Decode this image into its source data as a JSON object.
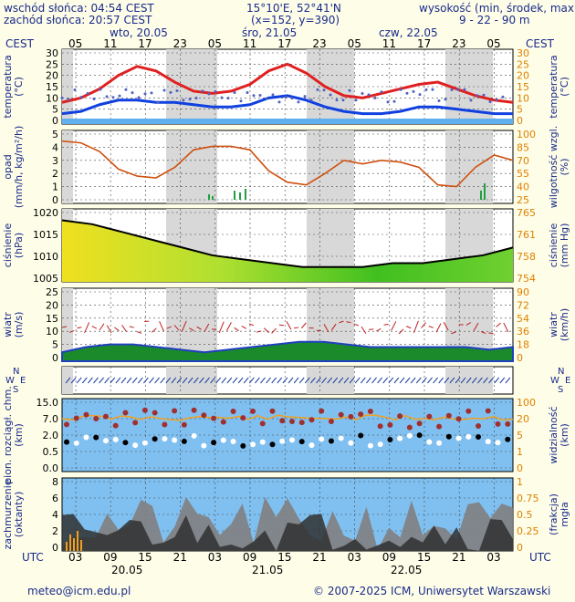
{
  "header": {
    "sunrise": "wschód słońca: 04:54 CEST",
    "sunset": "zachód słońca: 20:57 CEST",
    "coords": "15°10'E, 52°41'N",
    "grid": "(x=152, y=390)",
    "altitude_label": "wysokość (min, środek, max)",
    "altitude_values": "9 - 22 - 90 m"
  },
  "time_axis": {
    "tz": "CEST",
    "top_hours": [
      "05",
      "11",
      "17",
      "23",
      "05",
      "11",
      "17",
      "23",
      "05",
      "11",
      "17",
      "23",
      "05"
    ],
    "top_days": [
      "wto, 20.05",
      "śro, 21.05",
      "czw, 22.05"
    ],
    "utc_label": "UTC",
    "bottom_hours": [
      "03",
      "09",
      "15",
      "21",
      "03",
      "09",
      "15",
      "21",
      "03",
      "09",
      "15",
      "21",
      "03"
    ],
    "bottom_days": [
      "20.05",
      "21.05",
      "22.05"
    ]
  },
  "panels": {
    "temperature": {
      "left_label": [
        "temperatura",
        "(°C)"
      ],
      "right_label": [
        "temperatura",
        "(°C)"
      ],
      "left_ticks": [
        "30",
        "25",
        "20",
        "15",
        "10",
        "5",
        "0"
      ],
      "right_ticks": [
        "30",
        "25",
        "20",
        "15",
        "10",
        "5",
        "0"
      ]
    },
    "precip": {
      "left_label": [
        "opad",
        "(mm/h, kg/m²/h)"
      ],
      "right_label": [
        "wilgotność wzgl.",
        "(%)"
      ],
      "left_ticks": [
        "5",
        "4",
        "3",
        "2",
        "1",
        "0"
      ],
      "right_ticks": [
        "100",
        "85",
        "70",
        "55",
        "40",
        "25"
      ]
    },
    "pressure": {
      "left_label": [
        "ciśnienie",
        "(hPa)"
      ],
      "right_label": [
        "ciśnienie",
        "(mm Hg)"
      ],
      "left_ticks": [
        "1020",
        "1015",
        "1010",
        "1005"
      ],
      "right_ticks": [
        "765",
        "761",
        "758",
        "754"
      ]
    },
    "wind": {
      "left_label": [
        "wiatr",
        "(m/s)"
      ],
      "right_label": [
        "wiatr",
        "(km/h)"
      ],
      "left_ticks": [
        "25",
        "20",
        "15",
        "10",
        "5",
        "0"
      ],
      "right_ticks": [
        "90",
        "72",
        "54",
        "36",
        "18",
        "0"
      ]
    },
    "wind_dir": {
      "compass_left": {
        "n": "N",
        "s": "S",
        "w": "W",
        "e": "E"
      },
      "compass_right": {
        "n": "N",
        "s": "S",
        "w": "W",
        "e": "E"
      }
    },
    "clouds": {
      "left_label": [
        "pion. rozciągł. chm.",
        "(km)"
      ],
      "right_label": [
        "widzialność",
        "(km)"
      ],
      "left_ticks": [
        "15.0",
        "7.0",
        "2.0",
        "0.5",
        "0.0"
      ],
      "right_ticks": [
        "100",
        "20",
        "5",
        "1",
        "0"
      ]
    },
    "cloud_cover": {
      "left_label": [
        "zachmurzenie",
        "(oktanty)"
      ],
      "right_label": [
        "(frakcja)",
        "mgła"
      ],
      "left_ticks": [
        "8",
        "6",
        "4",
        "2",
        "0"
      ],
      "right_ticks": [
        "1",
        "0.75",
        "0.5",
        "0.25",
        "0"
      ]
    }
  },
  "footer": {
    "email": "meteo@icm.edu.pl",
    "copyright": "© 2007-2025 ICM, Uniwersytet Warszawski"
  },
  "colors": {
    "background": "#fdfde8",
    "label_blue": "#1a2a8a",
    "temp_line": "#e02020",
    "dew_line": "#1040e0",
    "humidity_line": "#d05010",
    "sky_blue": "#80c0f0",
    "night_shade": "#d8d8d8"
  }
}
